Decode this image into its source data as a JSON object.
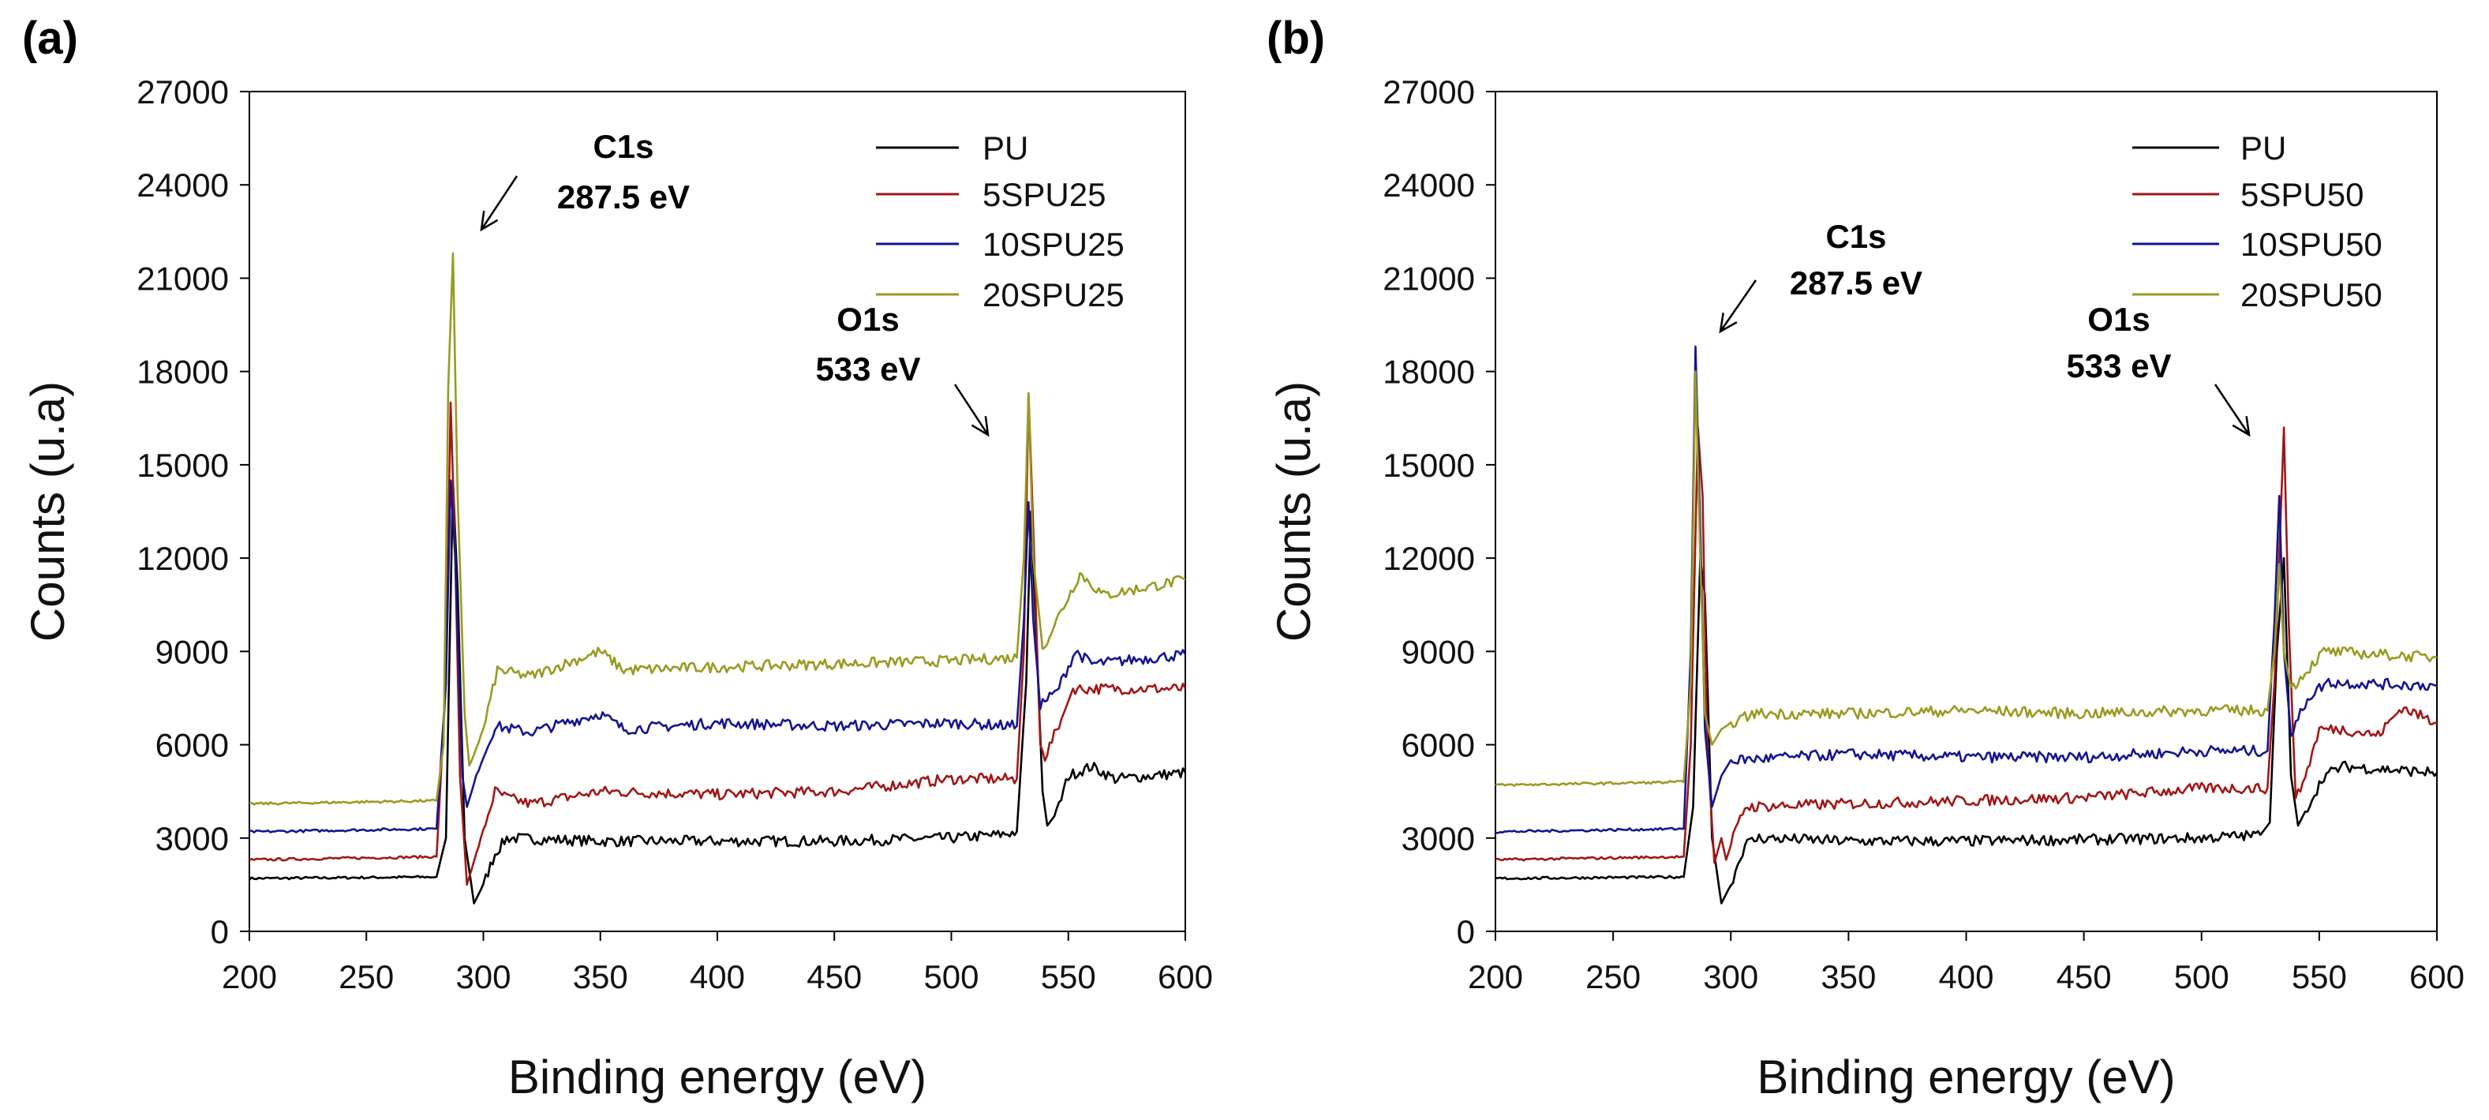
{
  "chart_data": [
    {
      "type": "line",
      "panel_label": "(a)",
      "xlabel": "Binding energy (eV)",
      "ylabel": "Counts (u.a)",
      "xlim": [
        200,
        600
      ],
      "ylim": [
        0,
        27000
      ],
      "xticks": [
        200,
        250,
        300,
        350,
        400,
        450,
        500,
        550,
        600
      ],
      "yticks": [
        0,
        3000,
        6000,
        9000,
        12000,
        15000,
        18000,
        21000,
        24000,
        27000
      ],
      "legend_position": "top-right",
      "annotations": [
        {
          "title": "C1s",
          "value": "287.5 eV"
        },
        {
          "title": "O1s",
          "value": "533 eV"
        }
      ],
      "series": [
        {
          "name": "PU",
          "color": "#000000",
          "points": [
            [
              200,
              1700
            ],
            [
              280,
              1750
            ],
            [
              284,
              3000
            ],
            [
              287,
              14500
            ],
            [
              289,
              11000
            ],
            [
              292,
              3000
            ],
            [
              296,
              900
            ],
            [
              300,
              1500
            ],
            [
              305,
              2500
            ],
            [
              310,
              3000
            ],
            [
              350,
              2900
            ],
            [
              400,
              2900
            ],
            [
              450,
              2900
            ],
            [
              500,
              3000
            ],
            [
              520,
              3100
            ],
            [
              528,
              3200
            ],
            [
              532,
              8000
            ],
            [
              534,
              13500
            ],
            [
              536,
              10000
            ],
            [
              539,
              4500
            ],
            [
              541,
              3400
            ],
            [
              545,
              3800
            ],
            [
              550,
              5000
            ],
            [
              560,
              5300
            ],
            [
              570,
              4900
            ],
            [
              600,
              5100
            ]
          ]
        },
        {
          "name": "5SPU25",
          "color": "#a01818",
          "points": [
            [
              200,
              2300
            ],
            [
              280,
              2400
            ],
            [
              284,
              8000
            ],
            [
              286,
              17000
            ],
            [
              288,
              12000
            ],
            [
              290,
              5000
            ],
            [
              293,
              1500
            ],
            [
              297,
              2500
            ],
            [
              305,
              4500
            ],
            [
              310,
              4300
            ],
            [
              320,
              4100
            ],
            [
              350,
              4500
            ],
            [
              400,
              4400
            ],
            [
              450,
              4500
            ],
            [
              500,
              4900
            ],
            [
              528,
              4900
            ],
            [
              531,
              9000
            ],
            [
              533,
              17300
            ],
            [
              535,
              13000
            ],
            [
              538,
              6000
            ],
            [
              540,
              5600
            ],
            [
              548,
              7000
            ],
            [
              552,
              7800
            ],
            [
              560,
              7800
            ],
            [
              600,
              7800
            ]
          ]
        },
        {
          "name": "10SPU25",
          "color": "#15158f",
          "points": [
            [
              200,
              3200
            ],
            [
              280,
              3300
            ],
            [
              284,
              8000
            ],
            [
              286,
              14500
            ],
            [
              288,
              12000
            ],
            [
              291,
              5000
            ],
            [
              293,
              4000
            ],
            [
              297,
              5000
            ],
            [
              305,
              6600
            ],
            [
              320,
              6400
            ],
            [
              350,
              7000
            ],
            [
              360,
              6500
            ],
            [
              400,
              6700
            ],
            [
              450,
              6600
            ],
            [
              500,
              6700
            ],
            [
              528,
              6600
            ],
            [
              531,
              10000
            ],
            [
              533,
              13800
            ],
            [
              535,
              10000
            ],
            [
              538,
              7300
            ],
            [
              545,
              7700
            ],
            [
              553,
              9000
            ],
            [
              560,
              8600
            ],
            [
              600,
              8900
            ]
          ]
        },
        {
          "name": "20SPU25",
          "color": "#9a9a22",
          "points": [
            [
              200,
              4100
            ],
            [
              280,
              4200
            ],
            [
              283,
              6000
            ],
            [
              285,
              17500
            ],
            [
              287,
              21800
            ],
            [
              289,
              14000
            ],
            [
              292,
              7000
            ],
            [
              294,
              5300
            ],
            [
              300,
              6500
            ],
            [
              306,
              8400
            ],
            [
              320,
              8200
            ],
            [
              350,
              9000
            ],
            [
              360,
              8400
            ],
            [
              400,
              8500
            ],
            [
              450,
              8600
            ],
            [
              500,
              8700
            ],
            [
              528,
              8800
            ],
            [
              531,
              12000
            ],
            [
              533,
              17300
            ],
            [
              535,
              12000
            ],
            [
              539,
              9100
            ],
            [
              545,
              10000
            ],
            [
              555,
              11500
            ],
            [
              565,
              10800
            ],
            [
              600,
              11300
            ]
          ]
        }
      ]
    },
    {
      "type": "line",
      "panel_label": "(b)",
      "xlabel": "Binding energy (eV)",
      "ylabel": "Counts (u.a)",
      "xlim": [
        200,
        600
      ],
      "ylim": [
        0,
        27000
      ],
      "xticks": [
        200,
        250,
        300,
        350,
        400,
        450,
        500,
        550,
        600
      ],
      "yticks": [
        0,
        3000,
        6000,
        9000,
        12000,
        15000,
        18000,
        21000,
        24000,
        27000
      ],
      "legend_position": "top-right",
      "annotations": [
        {
          "title": "C1s",
          "value": "287.5 eV"
        },
        {
          "title": "O1s",
          "value": "533 eV"
        }
      ],
      "series": [
        {
          "name": "PU",
          "color": "#000000",
          "points": [
            [
              200,
              1700
            ],
            [
              280,
              1750
            ],
            [
              284,
              4000
            ],
            [
              287,
              12000
            ],
            [
              289,
              10800
            ],
            [
              292,
              3000
            ],
            [
              296,
              900
            ],
            [
              300,
              1500
            ],
            [
              306,
              2800
            ],
            [
              312,
              3000
            ],
            [
              350,
              2900
            ],
            [
              400,
              2900
            ],
            [
              500,
              3000
            ],
            [
              525,
              3100
            ],
            [
              529,
              3500
            ],
            [
              532,
              9000
            ],
            [
              535,
              12000
            ],
            [
              538,
              5000
            ],
            [
              541,
              3400
            ],
            [
              545,
              4000
            ],
            [
              552,
              5000
            ],
            [
              560,
              5300
            ],
            [
              600,
              5100
            ]
          ]
        },
        {
          "name": "5SPU50",
          "color": "#a01818",
          "points": [
            [
              200,
              2300
            ],
            [
              280,
              2400
            ],
            [
              283,
              6000
            ],
            [
              286,
              16200
            ],
            [
              288,
              14000
            ],
            [
              290,
              6000
            ],
            [
              293,
              2200
            ],
            [
              296,
              3000
            ],
            [
              298,
              2300
            ],
            [
              301,
              3000
            ],
            [
              306,
              4000
            ],
            [
              350,
              4100
            ],
            [
              400,
              4200
            ],
            [
              450,
              4300
            ],
            [
              500,
              4600
            ],
            [
              528,
              4600
            ],
            [
              531,
              8000
            ],
            [
              535,
              16200
            ],
            [
              537,
              10000
            ],
            [
              540,
              4200
            ],
            [
              545,
              5200
            ],
            [
              550,
              6500
            ],
            [
              560,
              6500
            ],
            [
              575,
              6300
            ],
            [
              585,
              7200
            ],
            [
              600,
              6700
            ]
          ]
        },
        {
          "name": "10SPU50",
          "color": "#15158f",
          "points": [
            [
              200,
              3200
            ],
            [
              280,
              3300
            ],
            [
              283,
              9000
            ],
            [
              285,
              18800
            ],
            [
              287,
              13000
            ],
            [
              289,
              6500
            ],
            [
              292,
              4000
            ],
            [
              296,
              5000
            ],
            [
              300,
              5500
            ],
            [
              350,
              5700
            ],
            [
              400,
              5600
            ],
            [
              450,
              5600
            ],
            [
              500,
              5800
            ],
            [
              528,
              5800
            ],
            [
              531,
              10000
            ],
            [
              533,
              14000
            ],
            [
              535,
              9000
            ],
            [
              538,
              6300
            ],
            [
              545,
              7500
            ],
            [
              553,
              8000
            ],
            [
              600,
              7900
            ]
          ]
        },
        {
          "name": "20SPU50",
          "color": "#9a9a22",
          "points": [
            [
              200,
              4700
            ],
            [
              280,
              4800
            ],
            [
              283,
              8000
            ],
            [
              285,
              18000
            ],
            [
              287,
              12000
            ],
            [
              289,
              7000
            ],
            [
              292,
              6000
            ],
            [
              296,
              6500
            ],
            [
              300,
              6700
            ],
            [
              310,
              7000
            ],
            [
              350,
              7000
            ],
            [
              400,
              7100
            ],
            [
              450,
              7000
            ],
            [
              500,
              7100
            ],
            [
              528,
              7100
            ],
            [
              531,
              9000
            ],
            [
              533,
              11800
            ],
            [
              535,
              9000
            ],
            [
              538,
              7800
            ],
            [
              545,
              8400
            ],
            [
              552,
              9000
            ],
            [
              600,
              8800
            ]
          ]
        }
      ]
    }
  ]
}
